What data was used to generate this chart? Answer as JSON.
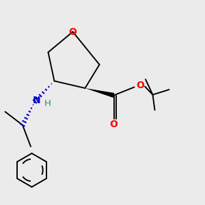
{
  "background_color": "#ebebeb",
  "atom_colors": {
    "O": "#ff0000",
    "N": "#0000cc",
    "H": "#2e8b57",
    "C": "#000000"
  },
  "bond_color": "#000000",
  "lw": 1.4
}
